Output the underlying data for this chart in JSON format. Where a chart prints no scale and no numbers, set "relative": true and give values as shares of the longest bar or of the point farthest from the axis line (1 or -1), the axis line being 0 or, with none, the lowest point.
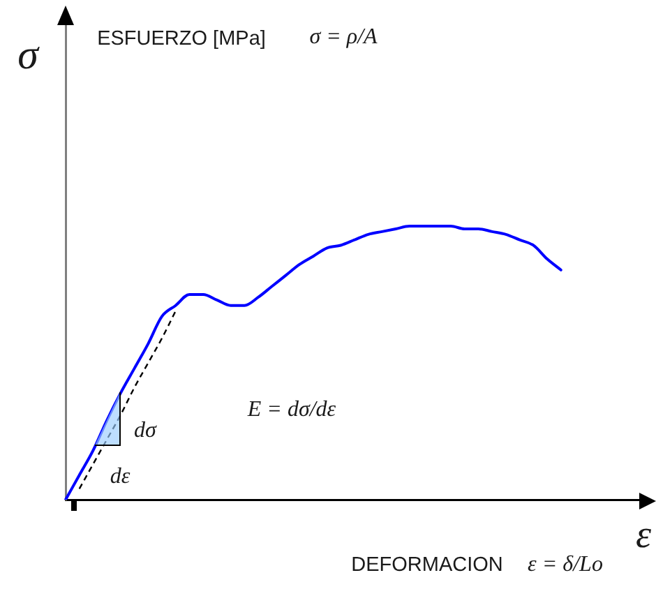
{
  "chart_data": {
    "type": "line",
    "relative": true,
    "marker": "none",
    "xlabel": "ε",
    "ylabel": "σ",
    "annotations": [
      "ESFUERZO [MPa]",
      "σ = ρ/A",
      "E = dσ/dε",
      "dσ",
      "dε",
      "DEFORMACION",
      "ε = δ/Lo"
    ],
    "categories": [
      null,
      null,
      null,
      null,
      null,
      null,
      null,
      null,
      null,
      null,
      null,
      null,
      null,
      null,
      null,
      null,
      null,
      null,
      null,
      null,
      null,
      null,
      null,
      null,
      null,
      null,
      null,
      null,
      null,
      null,
      null,
      null,
      null,
      null,
      null,
      null,
      null,
      null,
      null,
      null,
      null,
      null,
      null
    ],
    "series": [
      {
        "color": "#0000ff",
        "values": [
          0,
          0.09,
          0.18,
          0.29,
          0.39,
          0.48,
          0.57,
          0.67,
          0.71,
          0.75,
          0.75,
          0.73,
          0.71,
          0.71,
          0.74,
          0.78,
          0.82,
          0.86,
          0.89,
          0.92,
          0.93,
          0.95,
          0.97,
          0.98,
          0.99,
          1.0,
          1.0,
          1.0,
          1.0,
          0.99,
          0.99,
          0.98,
          0.97,
          0.95,
          0.93,
          0.88,
          0.84,
          null,
          null,
          null,
          null,
          null,
          null
        ]
      },
      {
        "color": "#000000",
        "line_style": "dashed",
        "values": [
          null,
          0.04,
          0.13,
          0.22,
          0.31,
          0.41,
          0.5,
          0.59,
          0.69,
          null,
          null,
          null,
          null,
          null,
          null,
          null,
          null,
          null,
          null,
          null,
          null,
          null,
          null,
          null,
          null,
          null,
          null,
          null,
          null,
          null,
          null,
          null,
          null,
          null,
          null,
          null,
          null,
          null,
          null,
          null,
          null,
          null,
          null
        ]
      }
    ]
  }
}
